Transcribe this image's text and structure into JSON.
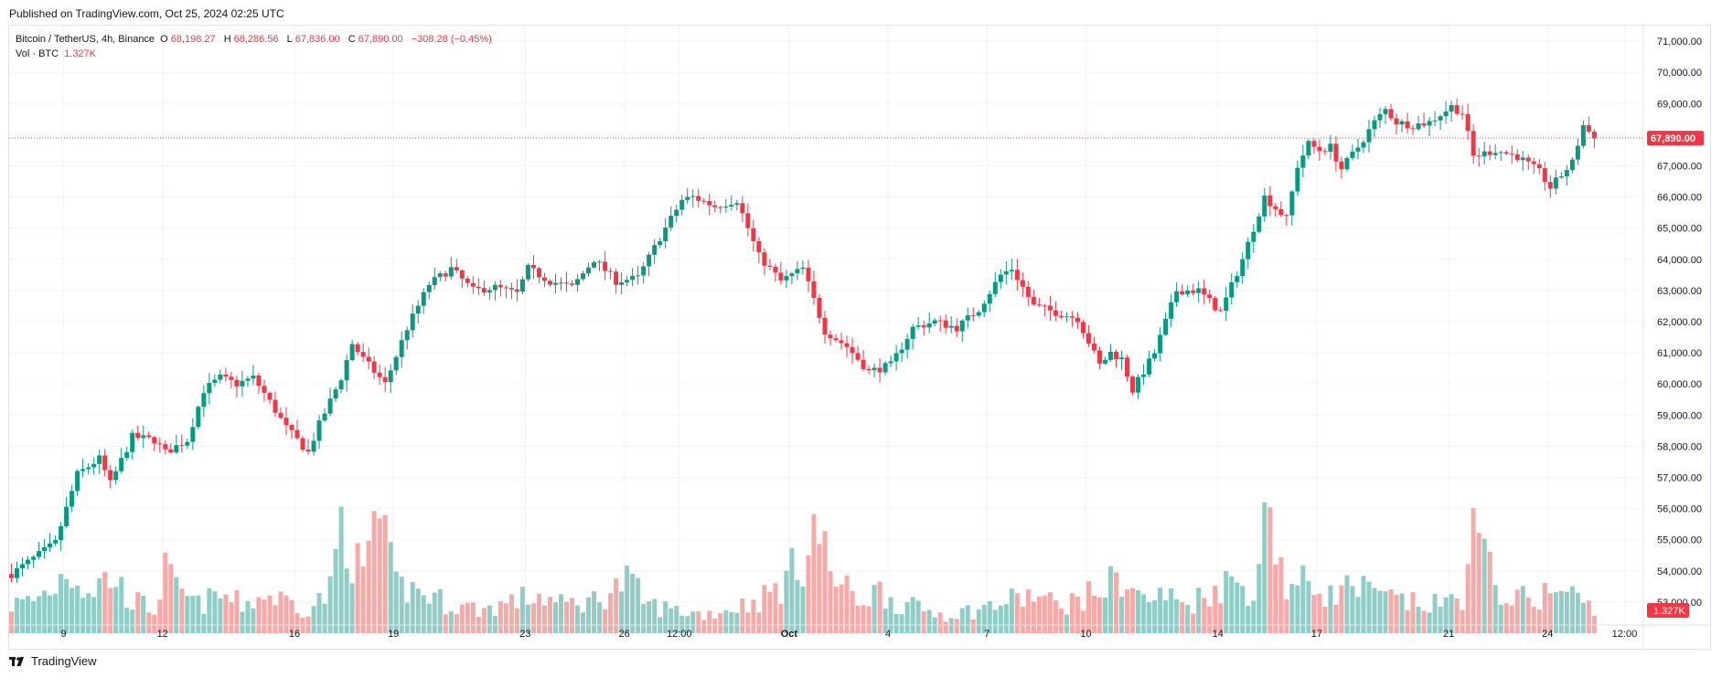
{
  "header": {
    "published": "Published on TradingView.com, Oct 25, 2024 02:25 UTC"
  },
  "legend": {
    "symbol": "Bitcoin / TetherUS, 4h, Binance",
    "o_label": "O",
    "o_value": "68,198.27",
    "h_label": "H",
    "h_value": "68,286.56",
    "l_label": "L",
    "l_value": "67,836.00",
    "c_label": "C",
    "c_value": "67,890.00",
    "change": "−308.28 (−0.45%)",
    "vol_label": "Vol · BTC",
    "vol_value": "1.327K"
  },
  "brand": {
    "name": "TradingView",
    "logo_icon": "tradingview-logo-icon"
  },
  "colors": {
    "up": "#089981",
    "down": "#f23645",
    "vol_up": "#8fcdc6",
    "vol_down": "#f7a9a7",
    "grid": "#f0f3fa",
    "text": "#131722"
  },
  "chart_data": {
    "type": "candlestick",
    "symbol": "Bitcoin / TetherUS",
    "interval": "4h",
    "exchange": "Binance",
    "ylim": [
      52000,
      71500
    ],
    "y_ticks": [
      53000,
      54000,
      55000,
      56000,
      57000,
      58000,
      59000,
      60000,
      61000,
      62000,
      63000,
      64000,
      65000,
      66000,
      67000,
      68000,
      69000,
      70000,
      71000
    ],
    "y_tick_labels": [
      "53,000.00",
      "54,000.00",
      "55,000.00",
      "56,000.00",
      "57,000.00",
      "58,000.00",
      "59,000.00",
      "60,000.00",
      "61,000.00",
      "62,000.00",
      "63,000.00",
      "64,000.00",
      "65,000.00",
      "66,000.00",
      "67,000.00",
      "68,000.00",
      "69,000.00",
      "70,000.00",
      "71,000.00"
    ],
    "x_ticks": [
      {
        "label": "9",
        "bar": 9.5
      },
      {
        "label": "12",
        "bar": 27.5
      },
      {
        "label": "16",
        "bar": 51.5
      },
      {
        "label": "19",
        "bar": 69.5
      },
      {
        "label": "23",
        "bar": 93.5
      },
      {
        "label": "26",
        "bar": 111.5
      },
      {
        "label": "12:00",
        "bar": 121.5
      },
      {
        "label": "Oct",
        "bar": 141.5
      },
      {
        "label": "4",
        "bar": 159.5
      },
      {
        "label": "7",
        "bar": 177.5
      },
      {
        "label": "10",
        "bar": 195.5
      },
      {
        "label": "14",
        "bar": 219.5
      },
      {
        "label": "17",
        "bar": 237.5
      },
      {
        "label": "21",
        "bar": 261.5
      },
      {
        "label": "24",
        "bar": 279.5
      },
      {
        "label": "12:00",
        "bar": 293.5
      }
    ],
    "last_price": 67890,
    "last_price_label": "67,890.00",
    "last_volume_label": "1.327K",
    "waypoints": [
      [
        0,
        53900
      ],
      [
        4,
        54400
      ],
      [
        8,
        54900
      ],
      [
        12,
        57100
      ],
      [
        16,
        57600
      ],
      [
        18,
        56800
      ],
      [
        22,
        58300
      ],
      [
        26,
        58200
      ],
      [
        28,
        57800
      ],
      [
        32,
        58200
      ],
      [
        35,
        59800
      ],
      [
        38,
        60200
      ],
      [
        41,
        60000
      ],
      [
        44,
        60200
      ],
      [
        46,
        59700
      ],
      [
        50,
        58600
      ],
      [
        54,
        57800
      ],
      [
        56,
        58700
      ],
      [
        60,
        60200
      ],
      [
        62,
        61300
      ],
      [
        64,
        60800
      ],
      [
        68,
        60000
      ],
      [
        72,
        61800
      ],
      [
        76,
        63200
      ],
      [
        80,
        63700
      ],
      [
        84,
        63000
      ],
      [
        88,
        63100
      ],
      [
        92,
        62900
      ],
      [
        94,
        63700
      ],
      [
        98,
        63300
      ],
      [
        102,
        63100
      ],
      [
        106,
        64000
      ],
      [
        110,
        63300
      ],
      [
        114,
        63400
      ],
      [
        118,
        64700
      ],
      [
        122,
        65900
      ],
      [
        124,
        66000
      ],
      [
        128,
        65700
      ],
      [
        130,
        65800
      ],
      [
        132,
        65900
      ],
      [
        136,
        64100
      ],
      [
        140,
        63300
      ],
      [
        144,
        63700
      ],
      [
        148,
        61700
      ],
      [
        152,
        61200
      ],
      [
        156,
        60400
      ],
      [
        160,
        60600
      ],
      [
        164,
        61800
      ],
      [
        168,
        62000
      ],
      [
        172,
        61800
      ],
      [
        176,
        62400
      ],
      [
        180,
        63500
      ],
      [
        182,
        63700
      ],
      [
        186,
        62500
      ],
      [
        190,
        62300
      ],
      [
        194,
        62100
      ],
      [
        198,
        60600
      ],
      [
        200,
        61000
      ],
      [
        202,
        60800
      ],
      [
        204,
        59800
      ],
      [
        208,
        61000
      ],
      [
        212,
        63000
      ],
      [
        216,
        63000
      ],
      [
        220,
        62300
      ],
      [
        224,
        64000
      ],
      [
        228,
        66000
      ],
      [
        232,
        65300
      ],
      [
        234,
        67000
      ],
      [
        236,
        67700
      ],
      [
        238,
        67500
      ],
      [
        240,
        67600
      ],
      [
        242,
        66900
      ],
      [
        245,
        67600
      ],
      [
        248,
        68400
      ],
      [
        250,
        68800
      ],
      [
        252,
        68400
      ],
      [
        255,
        68300
      ],
      [
        258,
        68400
      ],
      [
        262,
        68900
      ],
      [
        264,
        68700
      ],
      [
        266,
        67300
      ],
      [
        270,
        67500
      ],
      [
        274,
        67300
      ],
      [
        278,
        66800
      ],
      [
        280,
        66300
      ],
      [
        284,
        67100
      ],
      [
        286,
        68300
      ],
      [
        288,
        67890
      ]
    ],
    "volume_waypoints": [
      [
        0,
        0.6
      ],
      [
        4,
        0.7
      ],
      [
        8,
        1.0
      ],
      [
        10,
        1.4
      ],
      [
        14,
        0.9
      ],
      [
        18,
        1.2
      ],
      [
        22,
        0.7
      ],
      [
        26,
        0.5
      ],
      [
        28,
        1.3
      ],
      [
        30,
        0.9
      ],
      [
        34,
        0.6
      ],
      [
        38,
        0.8
      ],
      [
        42,
        0.6
      ],
      [
        46,
        0.8
      ],
      [
        50,
        0.7
      ],
      [
        54,
        0.5
      ],
      [
        58,
        0.9
      ],
      [
        60,
        2.4
      ],
      [
        64,
        1.1
      ],
      [
        66,
        2.6
      ],
      [
        70,
        1.0
      ],
      [
        74,
        0.9
      ],
      [
        80,
        0.6
      ],
      [
        86,
        0.5
      ],
      [
        92,
        0.7
      ],
      [
        96,
        0.8
      ],
      [
        100,
        0.6
      ],
      [
        106,
        0.7
      ],
      [
        112,
        1.1
      ],
      [
        116,
        0.6
      ],
      [
        120,
        0.5
      ],
      [
        126,
        0.4
      ],
      [
        130,
        0.5
      ],
      [
        136,
        0.7
      ],
      [
        140,
        1.0
      ],
      [
        144,
        1.6
      ],
      [
        146,
        2.3
      ],
      [
        150,
        1.1
      ],
      [
        154,
        0.7
      ],
      [
        158,
        0.9
      ],
      [
        162,
        0.6
      ],
      [
        166,
        0.5
      ],
      [
        170,
        0.4
      ],
      [
        176,
        0.5
      ],
      [
        182,
        0.7
      ],
      [
        186,
        0.8
      ],
      [
        190,
        0.6
      ],
      [
        194,
        0.7
      ],
      [
        198,
        0.9
      ],
      [
        202,
        1.2
      ],
      [
        206,
        0.7
      ],
      [
        210,
        0.8
      ],
      [
        214,
        0.6
      ],
      [
        218,
        0.9
      ],
      [
        222,
        1.1
      ],
      [
        226,
        0.9
      ],
      [
        229,
        2.8
      ],
      [
        232,
        0.9
      ],
      [
        236,
        1.1
      ],
      [
        240,
        0.8
      ],
      [
        244,
        1.0
      ],
      [
        248,
        0.8
      ],
      [
        252,
        0.7
      ],
      [
        256,
        0.6
      ],
      [
        260,
        0.6
      ],
      [
        264,
        0.8
      ],
      [
        266,
        2.1
      ],
      [
        270,
        1.0
      ],
      [
        274,
        0.7
      ],
      [
        278,
        0.8
      ],
      [
        282,
        0.9
      ],
      [
        286,
        0.7
      ],
      [
        288,
        0.4
      ]
    ],
    "volume_max": 3.0
  }
}
